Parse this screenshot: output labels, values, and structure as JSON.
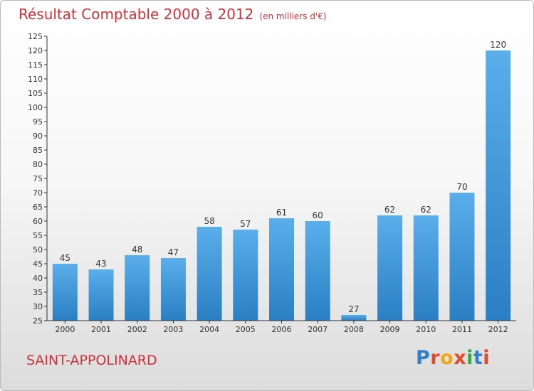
{
  "title": "Résultat Comptable 2000 à 2012",
  "title_unit": "(en milliers d'€)",
  "commune": "SAINT-APPOLINARD",
  "logo": {
    "letters": [
      "P",
      "r",
      "o",
      "x",
      "i",
      "t",
      "i"
    ],
    "colors": [
      "#2f80c9",
      "#e24b2a",
      "#f2a516",
      "#e24b2a",
      "#39a83a",
      "#2f80c9",
      "#e24b2a"
    ]
  },
  "colors": {
    "title": "#c8323b",
    "bar_light": "#5aaeea",
    "bar_dark": "#2a7fc4",
    "axis": "#333333"
  },
  "chart_data": {
    "type": "bar",
    "categories": [
      "2000",
      "2001",
      "2002",
      "2003",
      "2004",
      "2005",
      "2006",
      "2007",
      "2008",
      "2009",
      "2010",
      "2011",
      "2012"
    ],
    "values": [
      45,
      43,
      48,
      47,
      58,
      57,
      61,
      60,
      27,
      62,
      62,
      70,
      120
    ],
    "value_labels": [
      "45",
      "43",
      "48",
      "47",
      "58",
      "57",
      "61",
      "60",
      "27",
      "62",
      "62",
      "70",
      "120"
    ],
    "ylim": [
      25,
      125
    ],
    "ytick_step": 5,
    "yticks": [
      "25",
      "30",
      "35",
      "40",
      "45",
      "50",
      "55",
      "60",
      "65",
      "70",
      "75",
      "80",
      "85",
      "90",
      "95",
      "100",
      "105",
      "110",
      "115",
      "120",
      "125"
    ],
    "grid": false,
    "legend": "none"
  }
}
